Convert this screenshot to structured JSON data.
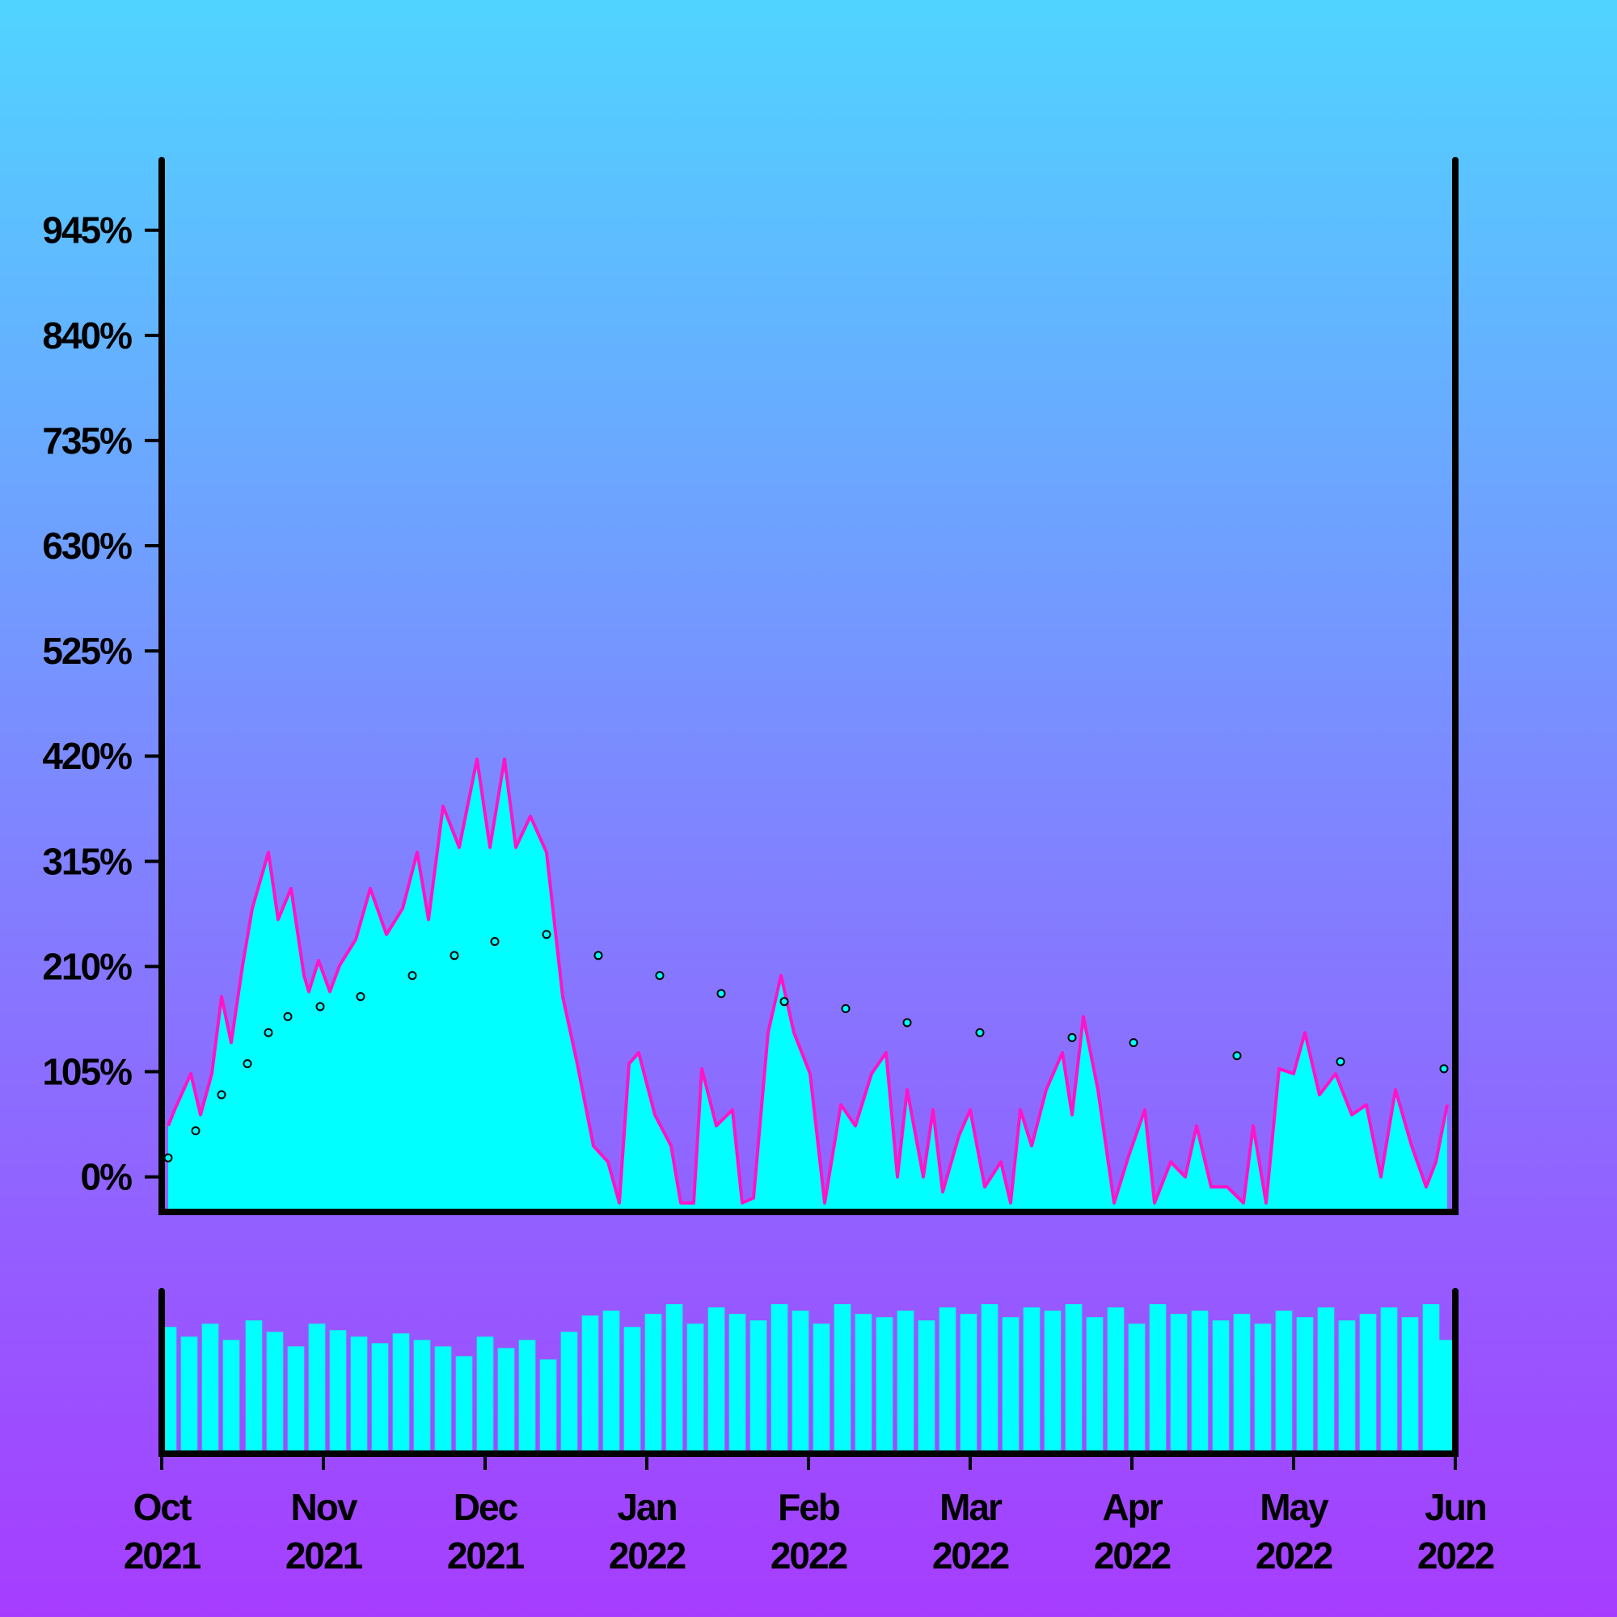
{
  "chart_data": {
    "type": "area",
    "line_color": "#ff14c8",
    "fill_color": "#00ffff",
    "xlim": [
      0,
      8
    ],
    "xticks": [
      {
        "value": 0,
        "label": "Oct 2021"
      },
      {
        "value": 1,
        "label": "Nov 2021"
      },
      {
        "value": 2,
        "label": "Dec 2021"
      },
      {
        "value": 3,
        "label": "Jan 2022"
      },
      {
        "value": 4,
        "label": "Feb 2022"
      },
      {
        "value": 5,
        "label": "Mar 2022"
      },
      {
        "value": 6,
        "label": "Apr 2022"
      },
      {
        "value": 7,
        "label": "May 2022"
      },
      {
        "value": 8,
        "label": "Jun 2022"
      }
    ],
    "ylim": [
      -35,
      1015
    ],
    "yticks": [
      {
        "value": 0,
        "label": "0%"
      },
      {
        "value": 105,
        "label": "105%"
      },
      {
        "value": 210,
        "label": "210%"
      },
      {
        "value": 315,
        "label": "315%"
      },
      {
        "value": 420,
        "label": "420%"
      },
      {
        "value": 525,
        "label": "525%"
      },
      {
        "value": 630,
        "label": "630%"
      },
      {
        "value": 735,
        "label": "735%"
      },
      {
        "value": 840,
        "label": "840%"
      },
      {
        "value": 945,
        "label": "945%"
      }
    ],
    "x": [
      0.04,
      0.08,
      0.18,
      0.24,
      0.31,
      0.37,
      0.43,
      0.5,
      0.56,
      0.66,
      0.72,
      0.8,
      0.88,
      0.91,
      0.97,
      1.04,
      1.1,
      1.2,
      1.29,
      1.39,
      1.49,
      1.58,
      1.65,
      1.74,
      1.84,
      1.95,
      2.03,
      2.12,
      2.19,
      2.28,
      2.38,
      2.48,
      2.57,
      2.67,
      2.76,
      2.83,
      2.89,
      2.95,
      3.05,
      3.15,
      3.21,
      3.29,
      3.34,
      3.43,
      3.53,
      3.59,
      3.66,
      3.75,
      3.83,
      3.91,
      4.01,
      4.1,
      4.2,
      4.29,
      4.39,
      4.48,
      4.55,
      4.61,
      4.71,
      4.77,
      4.83,
      4.93,
      5.0,
      5.09,
      5.19,
      5.25,
      5.31,
      5.38,
      5.47,
      5.57,
      5.63,
      5.7,
      5.79,
      5.89,
      5.98,
      6.08,
      6.14,
      6.24,
      6.33,
      6.4,
      6.49,
      6.59,
      6.69,
      6.75,
      6.83,
      6.91,
      7.0,
      7.07,
      7.16,
      7.26,
      7.36,
      7.45,
      7.54,
      7.63,
      7.73,
      7.82,
      7.88,
      7.95
    ],
    "values": [
      51,
      67,
      103,
      62,
      103,
      180,
      134,
      211,
      268,
      324,
      257,
      288,
      201,
      185,
      216,
      185,
      211,
      237,
      288,
      242,
      268,
      324,
      257,
      370,
      329,
      417,
      329,
      417,
      329,
      360,
      324,
      180,
      113,
      31,
      15,
      -26,
      113,
      124,
      62,
      31,
      -26,
      -26,
      108,
      51,
      67,
      -26,
      -21,
      144,
      201,
      144,
      103,
      -26,
      72,
      51,
      103,
      124,
      0,
      87,
      0,
      67,
      -15,
      41,
      67,
      -10,
      15,
      -26,
      67,
      31,
      87,
      124,
      62,
      160,
      87,
      -26,
      21,
      67,
      -26,
      15,
      0,
      51,
      -10,
      -10,
      -26,
      51,
      -26,
      108,
      103,
      144,
      82,
      103,
      62,
      72,
      0,
      87,
      31,
      -10,
      15,
      72
    ],
    "trend": {
      "color": "#00ffff",
      "x": [
        0.04,
        0.21,
        0.37,
        0.53,
        0.66,
        0.78,
        0.98,
        1.23,
        1.55,
        1.81,
        2.06,
        2.38,
        2.7,
        3.08,
        3.46,
        3.85,
        4.23,
        4.61,
        5.06,
        5.63,
        6.01,
        6.65,
        7.29,
        7.93
      ],
      "values": [
        19,
        46,
        82,
        113,
        144,
        160,
        170,
        180,
        201,
        221,
        235,
        242,
        221,
        201,
        183,
        175,
        168,
        154,
        144,
        139,
        134,
        121,
        115,
        108
      ]
    },
    "volume": {
      "color": "#00ffff",
      "ylim": [
        0,
        100
      ],
      "x": [
        0.04,
        0.17,
        0.3,
        0.43,
        0.57,
        0.7,
        0.83,
        0.96,
        1.09,
        1.22,
        1.35,
        1.48,
        1.61,
        1.74,
        1.87,
        2.0,
        2.13,
        2.26,
        2.39,
        2.52,
        2.65,
        2.78,
        2.91,
        3.04,
        3.17,
        3.3,
        3.43,
        3.56,
        3.69,
        3.82,
        3.95,
        4.08,
        4.21,
        4.34,
        4.47,
        4.6,
        4.73,
        4.86,
        4.99,
        5.12,
        5.25,
        5.38,
        5.51,
        5.64,
        5.77,
        5.9,
        6.03,
        6.16,
        6.29,
        6.42,
        6.55,
        6.68,
        6.81,
        6.94,
        7.07,
        7.2,
        7.33,
        7.46,
        7.59,
        7.72,
        7.85,
        7.95
      ],
      "values": [
        78,
        72,
        80,
        70,
        82,
        75,
        66,
        80,
        76,
        72,
        68,
        74,
        70,
        66,
        60,
        72,
        65,
        70,
        58,
        75,
        85,
        88,
        78,
        86,
        92,
        80,
        90,
        86,
        82,
        92,
        88,
        80,
        92,
        86,
        84,
        88,
        82,
        90,
        86,
        92,
        84,
        90,
        88,
        92,
        84,
        90,
        80,
        92,
        86,
        88,
        82,
        86,
        80,
        88,
        84,
        90,
        82,
        86,
        90,
        84,
        92,
        70
      ]
    }
  }
}
